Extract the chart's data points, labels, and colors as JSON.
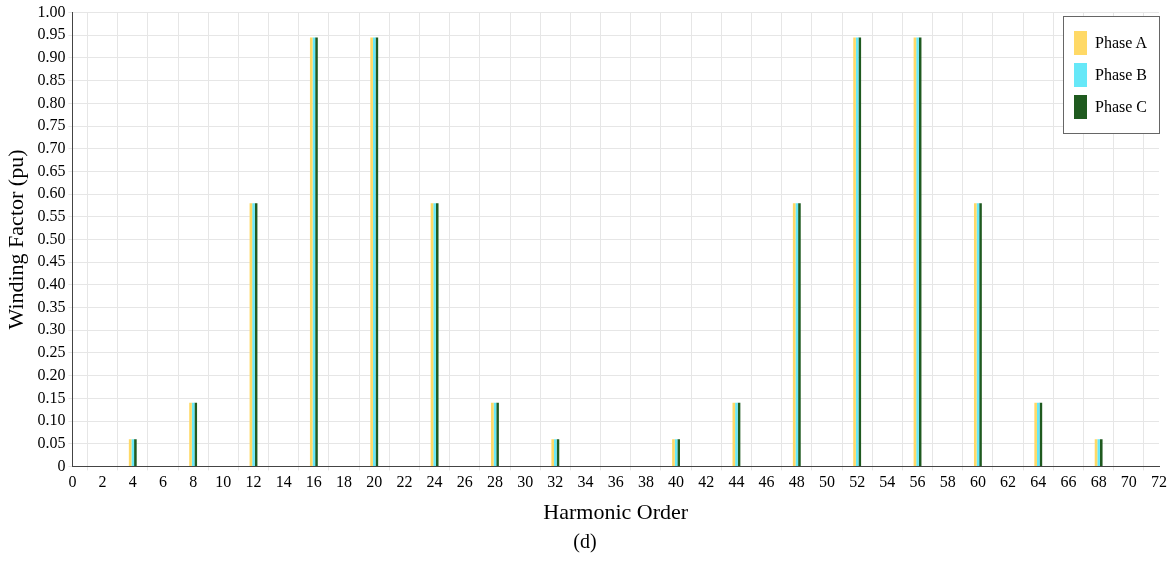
{
  "chart_data": {
    "type": "bar",
    "xlabel": "Harmonic Order",
    "ylabel": "Winding Factor (pu)",
    "annotations": [
      "(d)"
    ],
    "x": [
      4,
      8,
      12,
      16,
      20,
      24,
      28,
      32,
      40,
      44,
      48,
      52,
      56,
      60,
      64,
      68
    ],
    "series": [
      {
        "name": "Phase A",
        "color": "#ffd966",
        "values": [
          0.06,
          0.14,
          0.58,
          0.945,
          0.945,
          0.58,
          0.14,
          0.06,
          0.06,
          0.14,
          0.58,
          0.945,
          0.945,
          0.58,
          0.14,
          0.06
        ]
      },
      {
        "name": "Phase B",
        "color": "#66e8f8",
        "values": [
          0.06,
          0.14,
          0.58,
          0.945,
          0.945,
          0.58,
          0.14,
          0.06,
          0.06,
          0.14,
          0.58,
          0.945,
          0.945,
          0.58,
          0.14,
          0.06
        ]
      },
      {
        "name": "Phase C",
        "color": "#1f5a1f",
        "values": [
          0.06,
          0.14,
          0.58,
          0.945,
          0.945,
          0.58,
          0.14,
          0.06,
          0.06,
          0.14,
          0.58,
          0.945,
          0.945,
          0.58,
          0.14,
          0.06
        ]
      }
    ],
    "xlim": [
      0,
      72
    ],
    "xticks": [
      0,
      2,
      4,
      6,
      8,
      10,
      12,
      14,
      16,
      18,
      20,
      22,
      24,
      26,
      28,
      30,
      32,
      34,
      36,
      38,
      40,
      42,
      44,
      46,
      48,
      50,
      52,
      54,
      56,
      58,
      60,
      62,
      64,
      66,
      68,
      70,
      72
    ],
    "ylim": [
      0,
      1
    ],
    "yticks": [
      0,
      {
        "value": 0.05,
        "label": "0.05"
      },
      {
        "value": 0.1,
        "label": "0.10"
      },
      {
        "value": 0.15,
        "label": "0.15"
      },
      {
        "value": 0.2,
        "label": "0.20"
      },
      {
        "value": 0.25,
        "label": "0.25"
      },
      {
        "value": 0.3,
        "label": "0.30"
      },
      {
        "value": 0.35,
        "label": "0.35"
      },
      {
        "value": 0.4,
        "label": "0.40"
      },
      {
        "value": 0.45,
        "label": "0.45"
      },
      {
        "value": 0.5,
        "label": "0.50"
      },
      {
        "value": 0.55,
        "label": "0.55"
      },
      {
        "value": 0.6,
        "label": "0.60"
      },
      {
        "value": 0.65,
        "label": "0.65"
      },
      {
        "value": 0.7,
        "label": "0.70"
      },
      {
        "value": 0.75,
        "label": "0.75"
      },
      {
        "value": 0.8,
        "label": "0.80"
      },
      {
        "value": 0.85,
        "label": "0.85"
      },
      {
        "value": 0.9,
        "label": "0.90"
      },
      {
        "value": 0.95,
        "label": "0.95"
      },
      {
        "value": 1,
        "label": "1.00"
      }
    ],
    "grid": true,
    "legend": "top right"
  }
}
